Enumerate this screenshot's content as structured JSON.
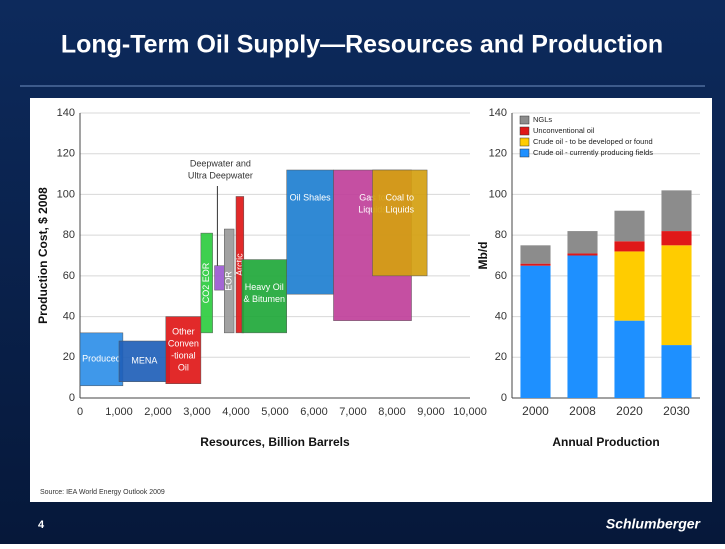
{
  "title": "Long-Term Oil Supply—Resources and Production",
  "source": "Source: IEA World Energy Outlook 2009",
  "footer": {
    "page": "4",
    "brand": "Schlumberger"
  },
  "chart_data": [
    {
      "type": "range_box",
      "xlabel": "Resources, Billion Barrels",
      "ylabel": "Production Cost, $ 2008",
      "xlim": [
        0,
        10000
      ],
      "ylim": [
        0,
        140
      ],
      "xticks": [
        0,
        {
          "value": 1000,
          "label": "1,000"
        },
        {
          "value": 2000,
          "label": "2,000"
        },
        {
          "value": 3000,
          "label": "3,000"
        },
        {
          "value": 4000,
          "label": "4,000"
        },
        {
          "value": 5000,
          "label": "5,000"
        },
        {
          "value": 6000,
          "label": "6,000"
        },
        {
          "value": 7000,
          "label": "7,000"
        },
        {
          "value": 8000,
          "label": "8,000"
        },
        {
          "value": 9000,
          "label": "9,000"
        },
        {
          "value": 10000,
          "label": "10,000"
        }
      ],
      "yticks": [
        0,
        20,
        40,
        60,
        80,
        100,
        120,
        140
      ],
      "grid": true,
      "annotation": [
        "Deepwater and",
        "Ultra Deepwater"
      ],
      "boxes": [
        {
          "label": [
            "Produced"
          ],
          "color": "#2f8fe8",
          "x": [
            0,
            1100
          ],
          "y": [
            6,
            32
          ]
        },
        {
          "label": [
            "MENA"
          ],
          "color": "#1f5fb8",
          "x": [
            1000,
            2300
          ],
          "y": [
            8,
            28
          ]
        },
        {
          "label": [
            "Other",
            "Conven",
            "-tional",
            "Oil"
          ],
          "color": "#e01818",
          "x": [
            2200,
            3100
          ],
          "y": [
            7,
            40
          ]
        },
        {
          "label": [
            "CO2 EOR"
          ],
          "color": "#2ecc40",
          "x": [
            3100,
            3400
          ],
          "y": [
            32,
            81
          ]
        },
        {
          "label": [],
          "color": "#9b59d0",
          "x": [
            3450,
            3700
          ],
          "y": [
            53,
            65
          ]
        },
        {
          "label": [
            "EOR"
          ],
          "color": "#9a9a9a",
          "x": [
            3700,
            3950
          ],
          "y": [
            32,
            83
          ]
        },
        {
          "label": [
            "Arctic"
          ],
          "color": "#e01818",
          "x": [
            4000,
            4200
          ],
          "y": [
            32,
            99
          ]
        },
        {
          "label": [
            "Heavy Oil",
            "& Bitumen"
          ],
          "color": "#1fa83a",
          "x": [
            4150,
            5300
          ],
          "y": [
            32,
            68
          ]
        },
        {
          "label": [
            "Oil Shales"
          ],
          "color": "#1e7fd0",
          "x": [
            5300,
            6500
          ],
          "y": [
            51,
            112
          ]
        },
        {
          "label": [
            "Gas to",
            "Liquids"
          ],
          "color": "#c0409a",
          "x": [
            6500,
            8500
          ],
          "y": [
            38,
            112
          ]
        },
        {
          "label": [
            "Coal to",
            "Liquids"
          ],
          "color": "#d4a010",
          "x": [
            7500,
            8900
          ],
          "y": [
            60,
            112
          ]
        }
      ]
    },
    {
      "type": "bar",
      "stacked": true,
      "ylabel": "Mb/d",
      "xlabel": "Annual Production",
      "categories": [
        "2000",
        "2008",
        "2020",
        "2030"
      ],
      "ylim": [
        0,
        140
      ],
      "yticks": [
        0,
        20,
        40,
        60,
        80,
        100,
        120,
        140
      ],
      "grid": true,
      "series": [
        {
          "name": "Crude oil - currently producing fields",
          "color": "#1e90ff",
          "values": [
            65,
            70,
            38,
            26
          ]
        },
        {
          "name": "Crude oil - to be developed or found",
          "color": "#ffcc00",
          "values": [
            0,
            0,
            34,
            49
          ]
        },
        {
          "name": "Unconventional oil",
          "color": "#e01818",
          "values": [
            1,
            1,
            5,
            7
          ]
        },
        {
          "name": "NGLs",
          "color": "#8c8c8c",
          "values": [
            9,
            11,
            15,
            20
          ]
        }
      ]
    }
  ]
}
